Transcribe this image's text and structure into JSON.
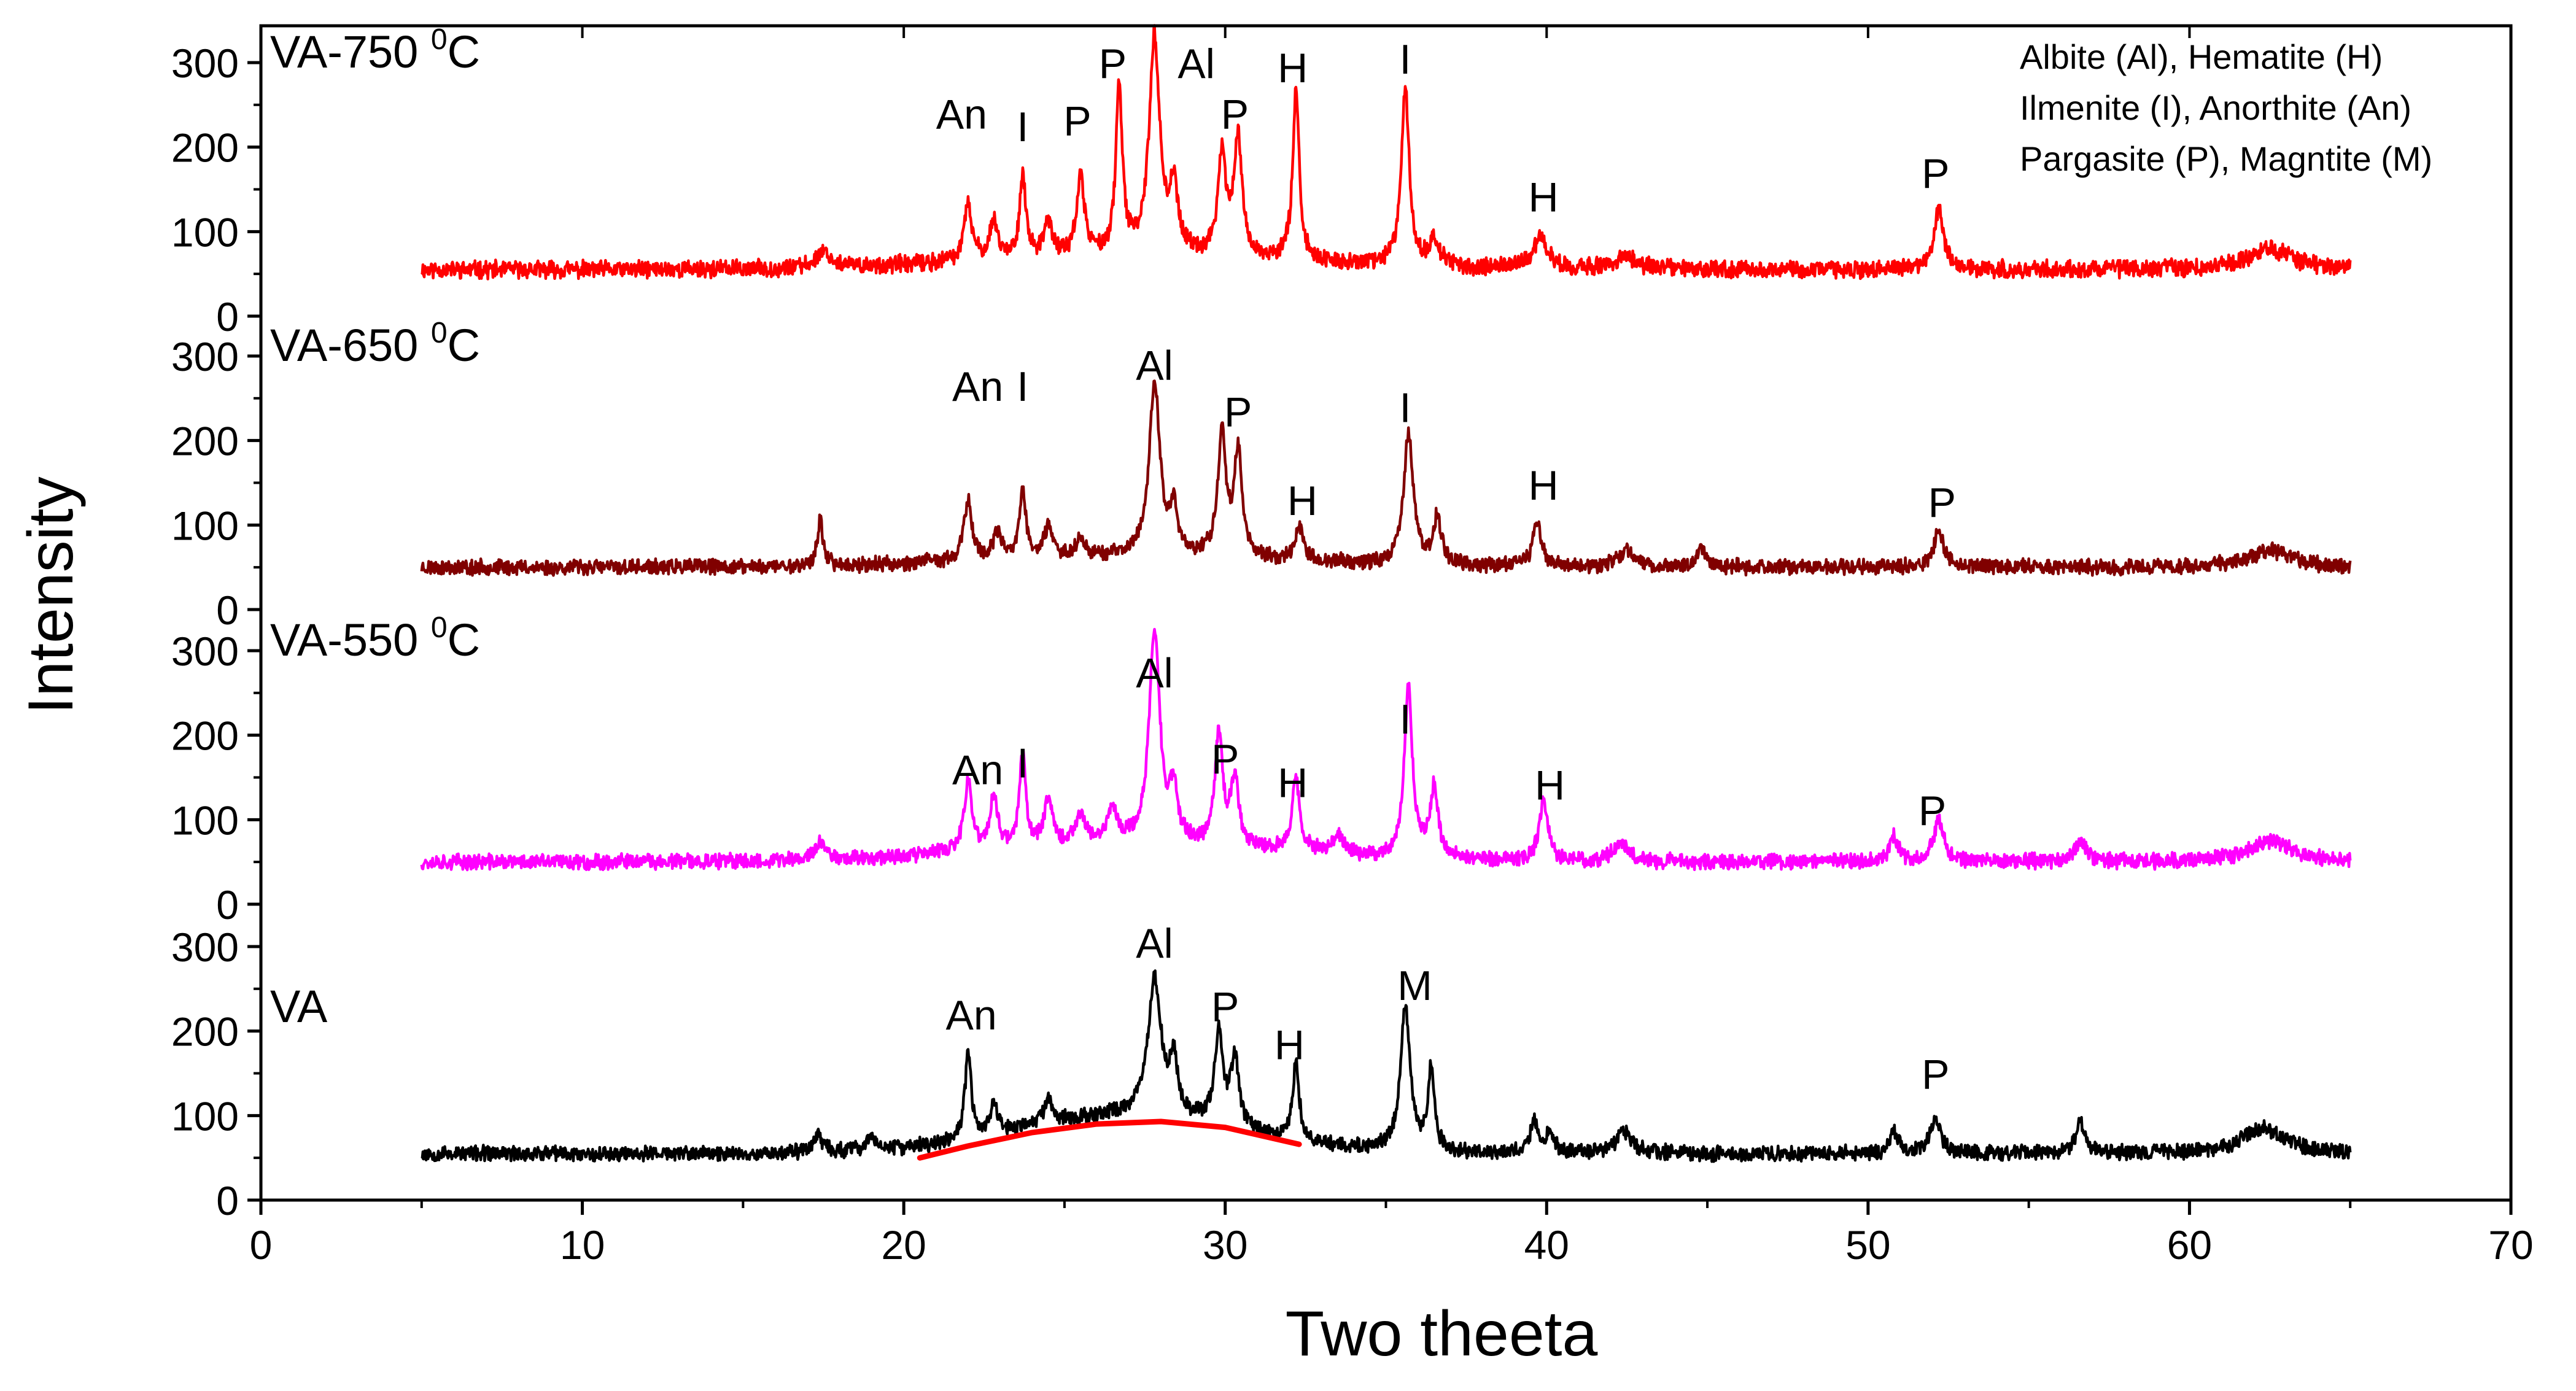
{
  "chart_data": {
    "type": "line",
    "title": "",
    "xlabel": "Two theeta",
    "ylabel": "Intensity",
    "xlim": [
      0,
      70
    ],
    "x_ticks": [
      0,
      10,
      20,
      30,
      40,
      50,
      60,
      70
    ],
    "y_ticks_per_panel": [
      0,
      100,
      200,
      300
    ],
    "panel_ylim": [
      0,
      345
    ],
    "x_range": [
      5,
      65
    ],
    "legend_lines": [
      "Albite (Al), Hematite (H)",
      "Ilmenite (I), Anorthite (An)",
      "Pargasite (P), Magntite (M)"
    ],
    "panels": [
      {
        "name": "VA-750",
        "label_main": "VA-750 ",
        "label_sup": "0",
        "label_unit": "C",
        "color": "#ff0000",
        "baseline": 55,
        "seed": 11,
        "noise": 9,
        "hump": {
          "center": 27,
          "height": 15,
          "width": 7
        },
        "peaks": [
          [
            17.5,
            20,
            0.25
          ],
          [
            22.0,
            65,
            0.15
          ],
          [
            22.8,
            45,
            0.15
          ],
          [
            23.7,
            95,
            0.12
          ],
          [
            24.5,
            40,
            0.15
          ],
          [
            25.5,
            90,
            0.15
          ],
          [
            26.7,
            195,
            0.12
          ],
          [
            27.8,
            255,
            0.2
          ],
          [
            28.4,
            75,
            0.15
          ],
          [
            29.9,
            120,
            0.15
          ],
          [
            30.4,
            140,
            0.15
          ],
          [
            32.2,
            205,
            0.12
          ],
          [
            35.6,
            210,
            0.15
          ],
          [
            36.5,
            30,
            0.2
          ],
          [
            39.8,
            35,
            0.3
          ],
          [
            42.5,
            15,
            0.4
          ],
          [
            52.2,
            70,
            0.18
          ],
          [
            62.5,
            25,
            0.8
          ]
        ],
        "annotations": [
          [
            "An",
            21.8,
            240
          ],
          [
            "I",
            23.7,
            225
          ],
          [
            "P",
            25.4,
            232
          ],
          [
            "P",
            26.5,
            300
          ],
          [
            "Al",
            29.1,
            300
          ],
          [
            "P",
            30.3,
            240
          ],
          [
            "H",
            32.1,
            295
          ],
          [
            "I",
            35.6,
            305
          ],
          [
            "H",
            39.9,
            142
          ],
          [
            "P",
            52.1,
            170
          ]
        ]
      },
      {
        "name": "VA-650",
        "label_main": "VA-650 ",
        "label_sup": "0",
        "label_unit": "C",
        "color": "#800000",
        "baseline": 50,
        "seed": 23,
        "noise": 8,
        "hump": {
          "center": 27,
          "height": 12,
          "width": 7
        },
        "peaks": [
          [
            17.4,
            55,
            0.1
          ],
          [
            22.0,
            70,
            0.15
          ],
          [
            22.9,
            30,
            0.15
          ],
          [
            23.7,
            80,
            0.12
          ],
          [
            24.5,
            35,
            0.15
          ],
          [
            25.5,
            20,
            0.2
          ],
          [
            27.8,
            205,
            0.2
          ],
          [
            28.4,
            50,
            0.15
          ],
          [
            29.9,
            145,
            0.15
          ],
          [
            30.4,
            125,
            0.15
          ],
          [
            32.3,
            40,
            0.15
          ],
          [
            35.7,
            155,
            0.18
          ],
          [
            36.6,
            55,
            0.15
          ],
          [
            39.7,
            55,
            0.15
          ],
          [
            42.5,
            20,
            0.3
          ],
          [
            44.8,
            25,
            0.15
          ],
          [
            52.2,
            45,
            0.18
          ],
          [
            62.5,
            20,
            0.8
          ]
        ],
        "annotations": [
          [
            "An",
            22.3,
            265
          ],
          [
            "I",
            23.7,
            265
          ],
          [
            "Al",
            27.8,
            290
          ],
          [
            "P",
            30.4,
            235
          ],
          [
            "H",
            32.4,
            130
          ],
          [
            "I",
            35.6,
            240
          ],
          [
            "H",
            39.9,
            148
          ],
          [
            "P",
            52.3,
            128
          ]
        ]
      },
      {
        "name": "VA-550",
        "label_main": "VA-550 ",
        "label_sup": "0",
        "label_unit": "C",
        "color": "#ff00ff",
        "baseline": 50,
        "seed": 37,
        "noise": 8,
        "hump": {
          "center": 27,
          "height": 18,
          "width": 7
        },
        "peaks": [
          [
            17.4,
            20,
            0.2
          ],
          [
            22.0,
            80,
            0.15
          ],
          [
            22.8,
            60,
            0.15
          ],
          [
            23.7,
            110,
            0.12
          ],
          [
            24.5,
            60,
            0.15
          ],
          [
            25.5,
            35,
            0.2
          ],
          [
            26.5,
            40,
            0.2
          ],
          [
            27.8,
            255,
            0.2
          ],
          [
            28.4,
            60,
            0.15
          ],
          [
            29.8,
            130,
            0.15
          ],
          [
            30.3,
            80,
            0.15
          ],
          [
            32.2,
            85,
            0.15
          ],
          [
            33.5,
            25,
            0.2
          ],
          [
            35.7,
            200,
            0.15
          ],
          [
            36.5,
            85,
            0.15
          ],
          [
            39.9,
            75,
            0.15
          ],
          [
            42.3,
            20,
            0.3
          ],
          [
            50.8,
            30,
            0.15
          ],
          [
            52.2,
            50,
            0.18
          ],
          [
            56.6,
            25,
            0.2
          ],
          [
            62.5,
            25,
            0.8
          ]
        ],
        "annotations": [
          [
            "An",
            22.3,
            160
          ],
          [
            "I",
            23.7,
            168
          ],
          [
            "Al",
            27.8,
            275
          ],
          [
            "P",
            30.0,
            173
          ],
          [
            "H",
            32.1,
            145
          ],
          [
            "I",
            35.6,
            220
          ],
          [
            "H",
            40.1,
            142
          ],
          [
            "P",
            52.0,
            112
          ]
        ]
      },
      {
        "name": "VA",
        "label_main": "VA",
        "label_sup": "",
        "label_unit": "",
        "color": "#000000",
        "baseline": 55,
        "seed": 53,
        "noise": 8,
        "hump": {
          "center": 27,
          "height": 45,
          "width": 5
        },
        "peaks": [
          [
            17.3,
            20,
            0.2
          ],
          [
            19.0,
            15,
            0.2
          ],
          [
            22.0,
            100,
            0.12
          ],
          [
            22.8,
            35,
            0.15
          ],
          [
            24.5,
            25,
            0.2
          ],
          [
            27.8,
            160,
            0.25
          ],
          [
            28.4,
            60,
            0.15
          ],
          [
            29.8,
            110,
            0.15
          ],
          [
            30.3,
            80,
            0.15
          ],
          [
            32.2,
            90,
            0.12
          ],
          [
            35.6,
            170,
            0.18
          ],
          [
            36.4,
            95,
            0.12
          ],
          [
            39.6,
            35,
            0.15
          ],
          [
            40.1,
            25,
            0.15
          ],
          [
            42.4,
            25,
            0.3
          ],
          [
            50.8,
            25,
            0.15
          ],
          [
            52.1,
            40,
            0.2
          ],
          [
            56.6,
            40,
            0.15
          ],
          [
            62.3,
            30,
            0.8
          ]
        ],
        "annotations": [
          [
            "An",
            22.1,
            220
          ],
          [
            "Al",
            27.8,
            305
          ],
          [
            "P",
            30.0,
            230
          ],
          [
            "H",
            32.0,
            185
          ],
          [
            "M",
            35.9,
            255
          ],
          [
            "P",
            52.1,
            150
          ]
        ],
        "amorphous_fit": {
          "color": "#ff0000",
          "x": [
            20.5,
            22,
            24,
            26,
            28,
            30,
            32.3
          ],
          "y": [
            50,
            64,
            80,
            90,
            93,
            86,
            66
          ]
        }
      }
    ]
  }
}
